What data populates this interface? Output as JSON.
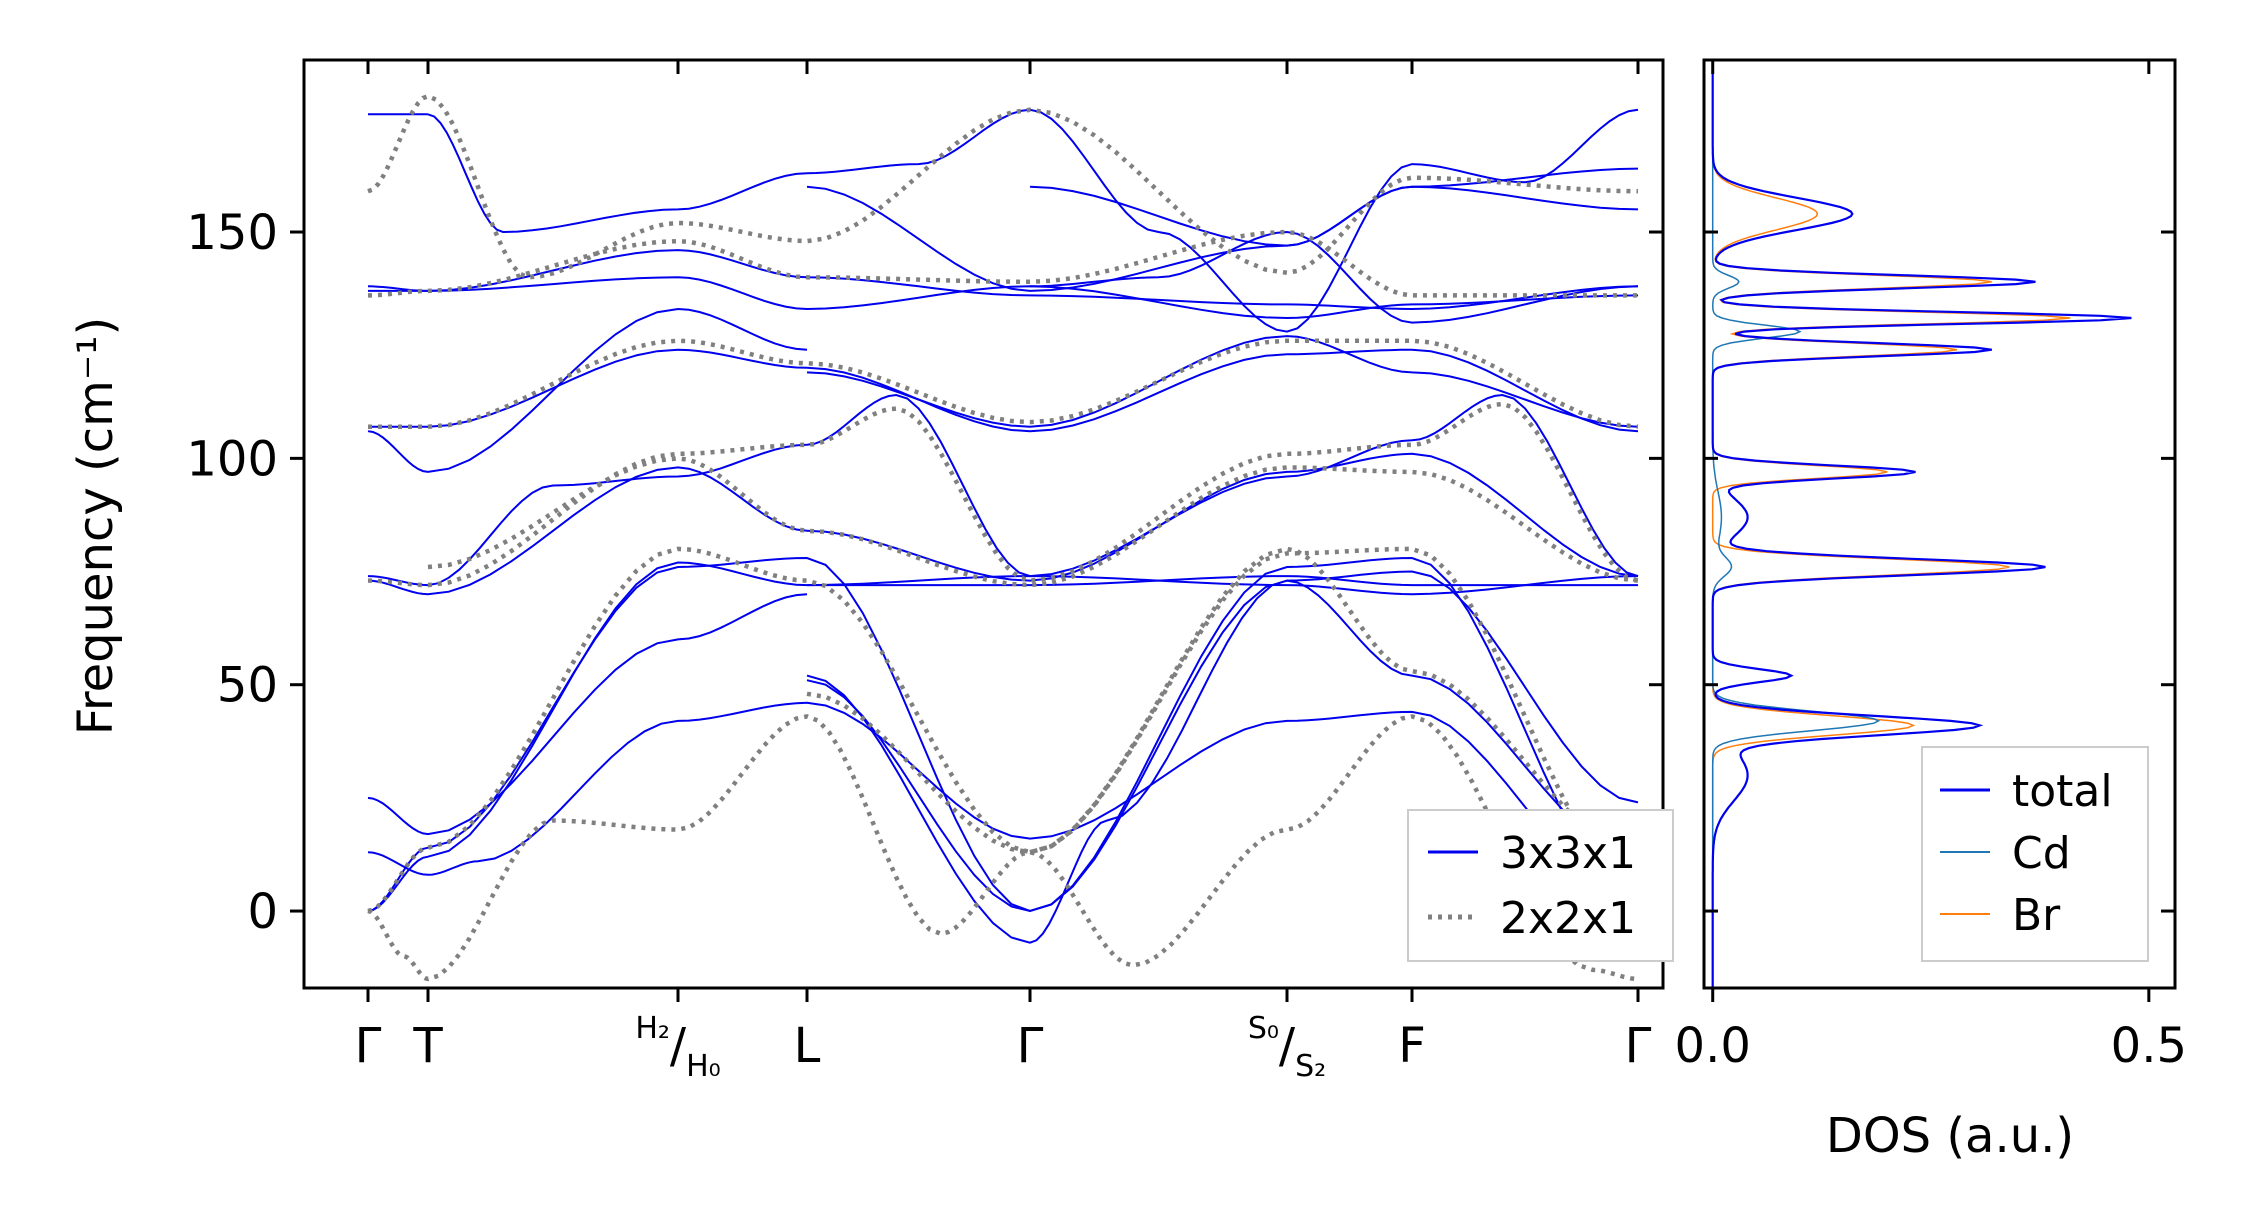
{
  "chart_data": [
    {
      "type": "line",
      "ylabel": "Frequency (cm⁻¹)",
      "ylim": [
        -17,
        188
      ],
      "yticks": [
        0,
        50,
        100,
        150
      ],
      "xticks": [
        "Γ",
        "T",
        "H2/H0",
        "L",
        "Γ",
        "S0/S2",
        "F",
        "Γ"
      ],
      "legend": {
        "position": "lower-right",
        "entries": [
          "3x3x1",
          "2x2x1"
        ]
      },
      "series": [
        {
          "name": "3x3x1",
          "color": "#0000ee",
          "style": "solid"
        },
        {
          "name": "2x2x1",
          "color": "#808080",
          "style": "dotted"
        }
      ]
    },
    {
      "type": "line",
      "xlabel": "DOS (a.u.)",
      "xlim": [
        -0.01,
        0.53
      ],
      "xticks": [
        0.0,
        0.5
      ],
      "legend": {
        "position": "lower-right",
        "entries": [
          "total",
          "Cd",
          "Br"
        ]
      },
      "series": [
        {
          "name": "total",
          "color": "#0000ee"
        },
        {
          "name": "Cd",
          "color": "#1f77b4"
        },
        {
          "name": "Br",
          "color": "#ff7f0e"
        }
      ]
    }
  ]
}
